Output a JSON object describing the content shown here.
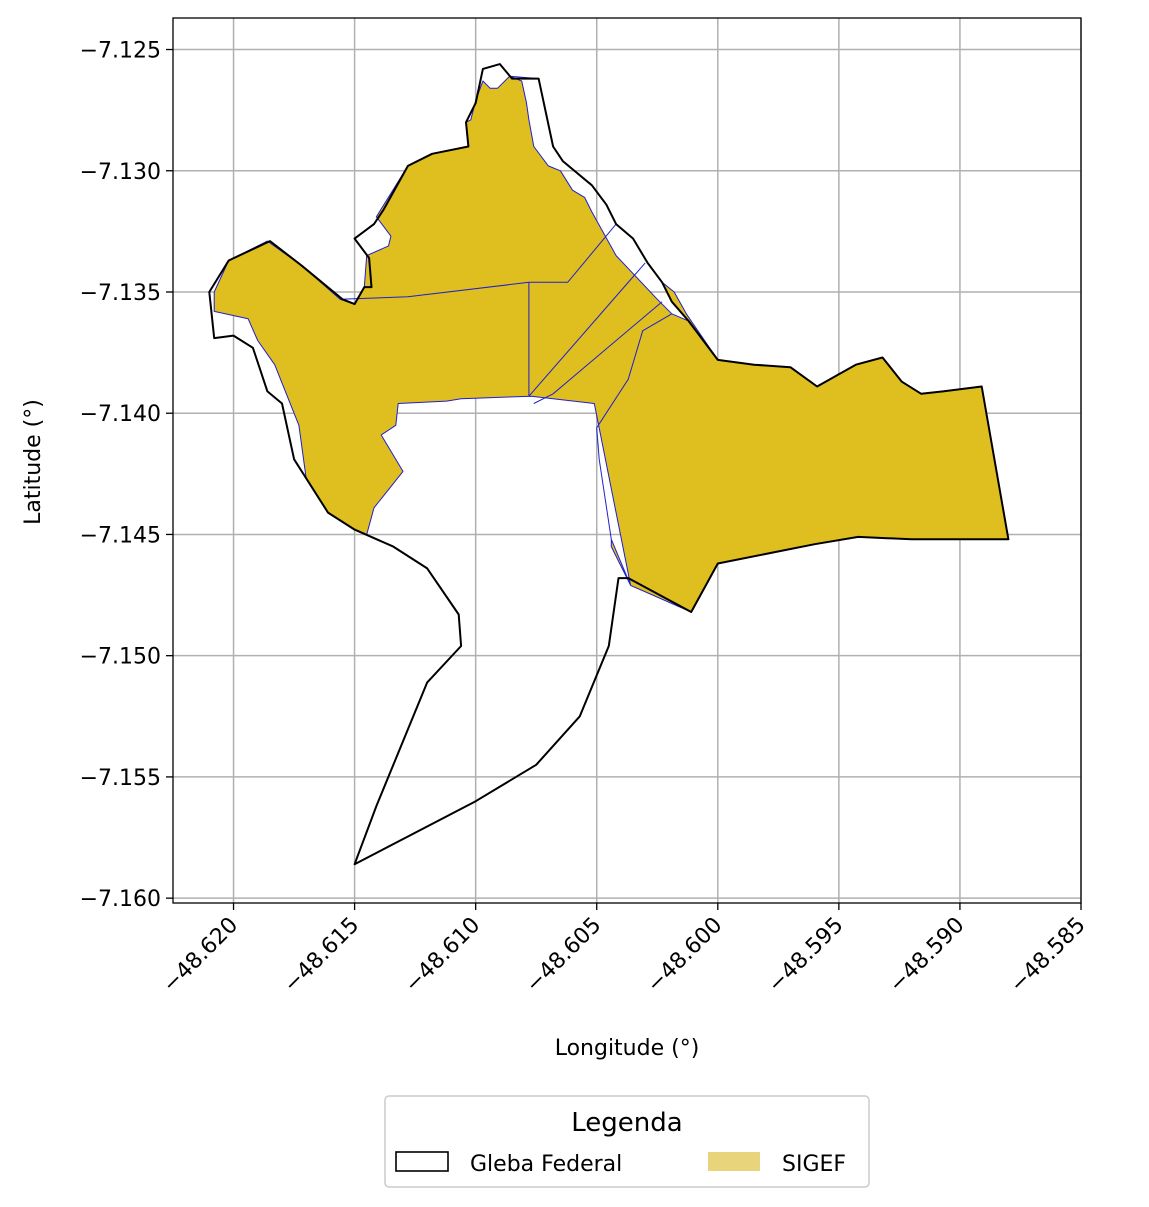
{
  "chart_data": {
    "type": "map",
    "xlabel": "Longitude (°)",
    "ylabel": "Latitude (°)",
    "xlim": [
      -48.6225,
      -48.585
    ],
    "ylim": [
      -7.1602,
      -7.1237
    ],
    "xticks": [
      -48.62,
      -48.615,
      -48.61,
      -48.605,
      -48.6,
      -48.595,
      -48.59,
      -48.585
    ],
    "yticks": [
      -7.125,
      -7.13,
      -7.135,
      -7.14,
      -7.145,
      -7.15,
      -7.155,
      -7.16
    ],
    "xtick_labels": [
      "−48.620",
      "−48.615",
      "−48.610",
      "−48.605",
      "−48.600",
      "−48.595",
      "−48.590",
      "−48.585"
    ],
    "ytick_labels": [
      "−7.125",
      "−7.130",
      "−7.135",
      "−7.140",
      "−7.145",
      "−7.150",
      "−7.155",
      "−7.160"
    ],
    "grid": true,
    "legend": {
      "title": "Legenda",
      "placement": "bottom-center",
      "entries": [
        {
          "label": "Gleba Federal",
          "style": "outline",
          "color": "#000000"
        },
        {
          "label": "SIGEF",
          "style": "fill",
          "color": "#e8d47a"
        }
      ]
    },
    "colors": {
      "sigef_fill": "#dfbe20",
      "sigef_edge": "#1f1fd0",
      "gleba_edge": "#000000",
      "grid": "#b0b0b0"
    },
    "gleba": [
      [
        -48.621,
        -7.135
      ],
      [
        -48.6202,
        -7.1337
      ],
      [
        -48.6185,
        -7.1329
      ],
      [
        -48.6172,
        -7.1339
      ],
      [
        -48.6155,
        -7.1353
      ],
      [
        -48.615,
        -7.1355
      ],
      [
        -48.6146,
        -7.1348
      ],
      [
        -48.6143,
        -7.1348
      ],
      [
        -48.6144,
        -7.1336
      ],
      [
        -48.615,
        -7.1328
      ],
      [
        -48.6142,
        -7.1322
      ],
      [
        -48.6138,
        -7.1316
      ],
      [
        -48.6128,
        -7.1298
      ],
      [
        -48.6118,
        -7.1293
      ],
      [
        -48.6103,
        -7.129
      ],
      [
        -48.6104,
        -7.128
      ],
      [
        -48.61,
        -7.1272
      ],
      [
        -48.6097,
        -7.1258
      ],
      [
        -48.609,
        -7.1256
      ],
      [
        -48.6085,
        -7.1262
      ],
      [
        -48.6074,
        -7.1262
      ],
      [
        -48.6068,
        -7.129
      ],
      [
        -48.6064,
        -7.1296
      ],
      [
        -48.6052,
        -7.1306
      ],
      [
        -48.6046,
        -7.1314
      ],
      [
        -48.6042,
        -7.1322
      ],
      [
        -48.6035,
        -7.1328
      ],
      [
        -48.6029,
        -7.1338
      ],
      [
        -48.6023,
        -7.1346
      ],
      [
        -48.6019,
        -7.1354
      ],
      [
        -48.6012,
        -7.1362
      ],
      [
        -48.6,
        -7.1378
      ],
      [
        -48.5985,
        -7.138
      ],
      [
        -48.597,
        -7.1381
      ],
      [
        -48.5959,
        -7.1389
      ],
      [
        -48.5943,
        -7.138
      ],
      [
        -48.5932,
        -7.1377
      ],
      [
        -48.5924,
        -7.1387
      ],
      [
        -48.5916,
        -7.1392
      ],
      [
        -48.5907,
        -7.1391
      ],
      [
        -48.5891,
        -7.1389
      ],
      [
        -48.588,
        -7.1452
      ],
      [
        -48.59,
        -7.1452
      ],
      [
        -48.592,
        -7.1452
      ],
      [
        -48.5942,
        -7.1451
      ],
      [
        -48.596,
        -7.1454
      ],
      [
        -48.6,
        -7.1462
      ],
      [
        -48.6011,
        -7.1482
      ],
      [
        -48.6037,
        -7.1468
      ],
      [
        -48.6041,
        -7.1468
      ],
      [
        -48.6045,
        -7.1496
      ],
      [
        -48.6057,
        -7.1525
      ],
      [
        -48.6075,
        -7.1545
      ],
      [
        -48.61,
        -7.156
      ],
      [
        -48.615,
        -7.1586
      ],
      [
        -48.6141,
        -7.1562
      ],
      [
        -48.612,
        -7.1511
      ],
      [
        -48.6106,
        -7.1496
      ],
      [
        -48.6107,
        -7.1483
      ],
      [
        -48.612,
        -7.1464
      ],
      [
        -48.6134,
        -7.1455
      ],
      [
        -48.615,
        -7.1448
      ],
      [
        -48.6161,
        -7.1441
      ],
      [
        -48.6175,
        -7.1419
      ],
      [
        -48.618,
        -7.1396
      ],
      [
        -48.6186,
        -7.1391
      ],
      [
        -48.6192,
        -7.1373
      ],
      [
        -48.62,
        -7.1368
      ],
      [
        -48.6208,
        -7.1369
      ],
      [
        -48.621,
        -7.135
      ]
    ],
    "sigef": [
      [
        -48.6208,
        -7.135
      ],
      [
        -48.6202,
        -7.1337
      ],
      [
        -48.6186,
        -7.1329
      ],
      [
        -48.6172,
        -7.1339
      ],
      [
        -48.6156,
        -7.1353
      ],
      [
        -48.615,
        -7.1355
      ],
      [
        -48.6146,
        -7.1348
      ],
      [
        -48.6145,
        -7.1335
      ],
      [
        -48.6136,
        -7.1331
      ],
      [
        -48.6135,
        -7.1327
      ],
      [
        -48.6141,
        -7.1319
      ],
      [
        -48.6128,
        -7.1298
      ],
      [
        -48.6118,
        -7.1293
      ],
      [
        -48.6103,
        -7.129
      ],
      [
        -48.6104,
        -7.128
      ],
      [
        -48.6102,
        -7.1279
      ],
      [
        -48.61,
        -7.1271
      ],
      [
        -48.6097,
        -7.1263
      ],
      [
        -48.6094,
        -7.1266
      ],
      [
        -48.6091,
        -7.1266
      ],
      [
        -48.6086,
        -7.1261
      ],
      [
        -48.6074,
        -7.1262
      ],
      [
        -48.6068,
        -7.129
      ],
      [
        -48.6064,
        -7.1296
      ],
      [
        -48.6052,
        -7.1306
      ],
      [
        -48.6046,
        -7.1314
      ],
      [
        -48.6042,
        -7.1322
      ],
      [
        -48.6035,
        -7.1328
      ],
      [
        -48.6029,
        -7.1338
      ],
      [
        -48.6023,
        -7.1346
      ],
      [
        -48.6018,
        -7.135
      ],
      [
        -48.6013,
        -7.1359
      ],
      [
        -48.6,
        -7.1378
      ],
      [
        -48.5985,
        -7.138
      ],
      [
        -48.597,
        -7.1381
      ],
      [
        -48.5959,
        -7.1389
      ],
      [
        -48.5943,
        -7.138
      ],
      [
        -48.5932,
        -7.1377
      ],
      [
        -48.5924,
        -7.1387
      ],
      [
        -48.5916,
        -7.1392
      ],
      [
        -48.5907,
        -7.1391
      ],
      [
        -48.5891,
        -7.1389
      ],
      [
        -48.588,
        -7.1452
      ],
      [
        -48.59,
        -7.1452
      ],
      [
        -48.592,
        -7.1452
      ],
      [
        -48.5942,
        -7.1451
      ],
      [
        -48.596,
        -7.1454
      ],
      [
        -48.6,
        -7.1462
      ],
      [
        -48.6011,
        -7.1482
      ],
      [
        -48.6036,
        -7.1471
      ],
      [
        -48.6044,
        -7.1455
      ],
      [
        -48.6044,
        -7.1452
      ],
      [
        -48.6049,
        -7.1419
      ],
      [
        -48.605,
        -7.1406
      ],
      [
        -48.6037,
        -7.1386
      ],
      [
        -48.6031,
        -7.1366
      ],
      [
        -48.6019,
        -7.1359
      ],
      [
        -48.6025,
        -7.1353
      ],
      [
        -48.6042,
        -7.1335
      ],
      [
        -48.6052,
        -7.1317
      ],
      [
        -48.6055,
        -7.1311
      ],
      [
        -48.606,
        -7.1308
      ],
      [
        -48.6065,
        -7.13
      ],
      [
        -48.607,
        -7.1298
      ],
      [
        -48.6076,
        -7.129
      ],
      [
        -48.6078,
        -7.1279
      ],
      [
        -48.6079,
        -7.1272
      ],
      [
        -48.6081,
        -7.1263
      ],
      [
        -48.6086,
        -7.1261
      ],
      [
        -48.6074,
        -7.1262
      ],
      [
        -48.6068,
        -7.129
      ],
      [
        -48.6064,
        -7.1296
      ],
      [
        -48.6052,
        -7.1306
      ],
      [
        -48.6046,
        -7.1314
      ],
      [
        -48.6042,
        -7.1322
      ],
      [
        -48.6035,
        -7.1328
      ],
      [
        -48.6029,
        -7.1338
      ],
      [
        -48.6023,
        -7.1346
      ],
      [
        -48.6019,
        -7.1354
      ],
      [
        -48.6012,
        -7.1362
      ],
      [
        -48.6019,
        -7.1359
      ],
      [
        -48.6031,
        -7.1366
      ],
      [
        -48.6037,
        -7.1386
      ],
      [
        -48.605,
        -7.1406
      ],
      [
        -48.6049,
        -7.1419
      ],
      [
        -48.6044,
        -7.1452
      ],
      [
        -48.6036,
        -7.1471
      ],
      [
        -48.6051,
        -7.1396
      ],
      [
        -48.6077,
        -7.1393
      ],
      [
        -48.6106,
        -7.1394
      ],
      [
        -48.6112,
        -7.1395
      ],
      [
        -48.6132,
        -7.1396
      ],
      [
        -48.6133,
        -7.1405
      ],
      [
        -48.6139,
        -7.1409
      ],
      [
        -48.613,
        -7.1424
      ],
      [
        -48.6142,
        -7.1439
      ],
      [
        -48.6145,
        -7.145
      ],
      [
        -48.615,
        -7.1448
      ],
      [
        -48.6161,
        -7.1441
      ],
      [
        -48.617,
        -7.1427
      ],
      [
        -48.6173,
        -7.1405
      ],
      [
        -48.6183,
        -7.138
      ],
      [
        -48.619,
        -7.137
      ],
      [
        -48.6194,
        -7.1361
      ],
      [
        -48.6208,
        -7.1358
      ],
      [
        -48.6208,
        -7.135
      ]
    ],
    "sigef_internal_lines": [
      [
        [
          -48.6156,
          -7.1353
        ],
        [
          -48.6128,
          -7.1352
        ],
        [
          -48.6078,
          -7.1346
        ],
        [
          -48.6062,
          -7.1346
        ],
        [
          -48.6042,
          -7.1322
        ]
      ],
      [
        [
          -48.6078,
          -7.1346
        ],
        [
          -48.6078,
          -7.1393
        ]
      ],
      [
        [
          -48.6078,
          -7.1393
        ],
        [
          -48.603,
          -7.1338
        ]
      ],
      [
        [
          -48.6076,
          -7.1396
        ],
        [
          -48.6068,
          -7.1392
        ],
        [
          -48.6023,
          -7.1354
        ]
      ]
    ]
  }
}
